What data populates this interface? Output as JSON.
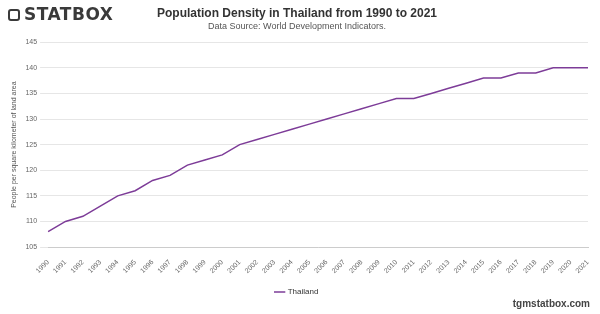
{
  "chart_data": {
    "type": "line",
    "title": "Population Density in Thailand from 1990 to 2021",
    "subtitle": "Data Source: World Development Indicators.",
    "y_label": "People per square kilometer of land area",
    "annotations": [
      "STATBOX",
      "tgmstatbox.com"
    ],
    "categories": [
      "1990",
      "1991",
      "1992",
      "1993",
      "1994",
      "1995",
      "1996",
      "1997",
      "1998",
      "1999",
      "2000",
      "2001",
      "2002",
      "2003",
      "2004",
      "2005",
      "2006",
      "2007",
      "2008",
      "2009",
      "2010",
      "2011",
      "2012",
      "2013",
      "2014",
      "2015",
      "2016",
      "2017",
      "2018",
      "2019",
      "2020",
      "2021"
    ],
    "series": [
      {
        "name": "Thailand",
        "color": "#7d3c98",
        "values": [
          108,
          110,
          111,
          113,
          115,
          116,
          118,
          119,
          121,
          122,
          123,
          125,
          126,
          127,
          128,
          129,
          130,
          131,
          132,
          133,
          134,
          134,
          135,
          136,
          137,
          138,
          138,
          139,
          139,
          140,
          140,
          140
        ]
      }
    ],
    "ylim": [
      105,
      145
    ],
    "yticks": [
      105,
      110,
      115,
      120,
      125,
      130,
      135,
      140,
      145
    ],
    "grid": true,
    "legend": "bottom"
  }
}
